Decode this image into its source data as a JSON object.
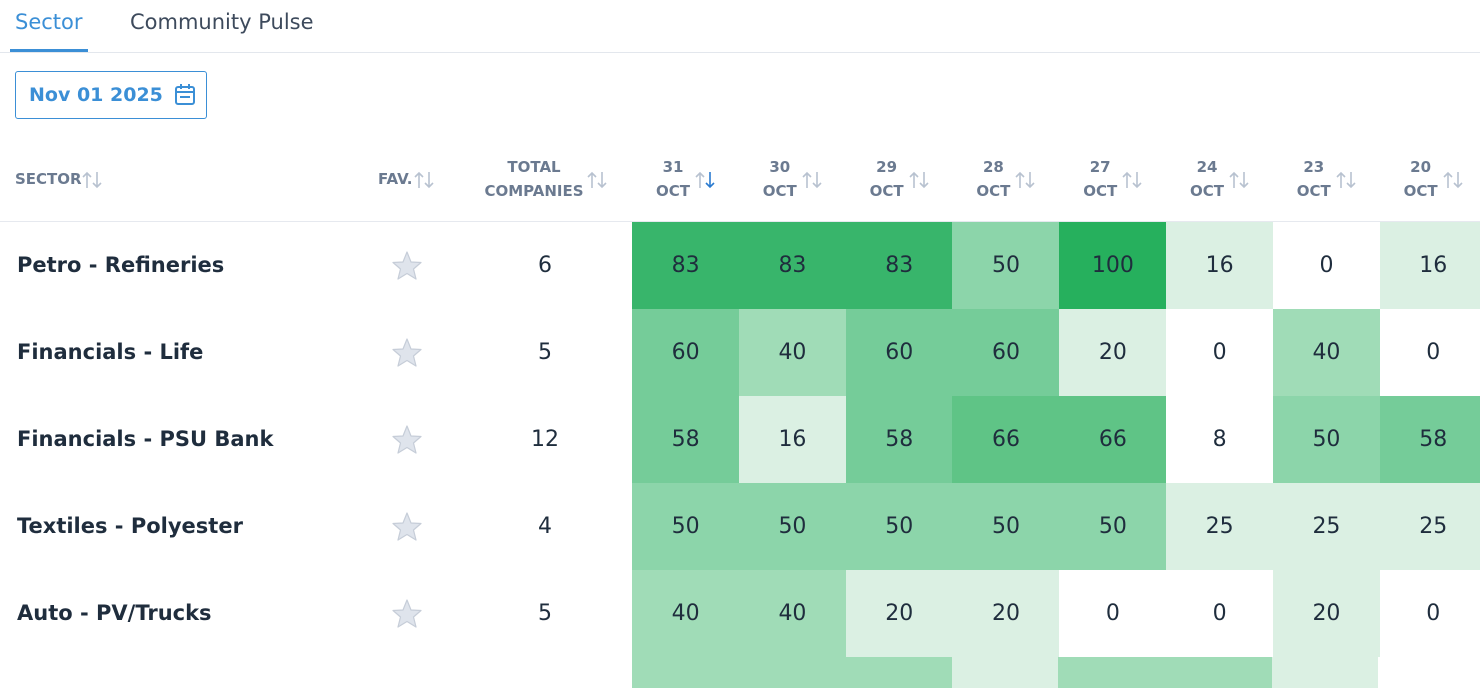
{
  "tabs": [
    "Sector",
    "Community Pulse"
  ],
  "date": "Nov 01 2025",
  "table": {
    "headers": {
      "sector": "SECTOR",
      "fav": "FAV.",
      "total": [
        "TOTAL",
        "COMPANIES"
      ],
      "dates": [
        [
          "31",
          "OCT"
        ],
        [
          "30",
          "OCT"
        ],
        [
          "29",
          "OCT"
        ],
        [
          "28",
          "OCT"
        ],
        [
          "27",
          "OCT"
        ],
        [
          "24",
          "OCT"
        ],
        [
          "23",
          "OCT"
        ],
        [
          "20",
          "OCT"
        ]
      ]
    },
    "rows": [
      {
        "sector": "Petro - Refineries",
        "total": 6,
        "values": [
          83,
          83,
          83,
          50,
          100,
          16,
          0,
          16
        ]
      },
      {
        "sector": "Financials - Life",
        "total": 5,
        "values": [
          60,
          40,
          60,
          60,
          20,
          0,
          40,
          0
        ]
      },
      {
        "sector": "Financials - PSU Bank",
        "total": 12,
        "values": [
          58,
          16,
          58,
          66,
          66,
          8,
          50,
          58
        ]
      },
      {
        "sector": "Textiles - Polyester",
        "total": 4,
        "values": [
          50,
          50,
          50,
          50,
          50,
          25,
          25,
          25
        ]
      },
      {
        "sector": "Auto - PV/Trucks",
        "total": 5,
        "values": [
          40,
          40,
          20,
          20,
          0,
          0,
          20,
          0
        ]
      }
    ]
  }
}
